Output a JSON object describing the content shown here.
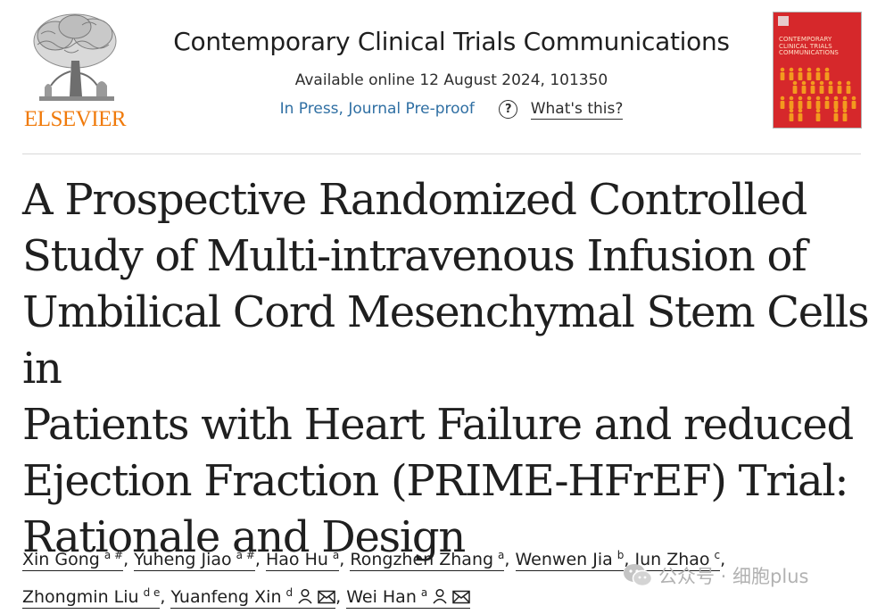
{
  "publisher": {
    "logo_text": "ELSEVIER",
    "logo_color": "#f07a0a"
  },
  "journal": {
    "name": "Contemporary Clinical Trials Communications",
    "availability": "Available online 12 August 2024, 101350",
    "status_link": "In Press, Journal Pre-proof",
    "help_link": "What's this?",
    "link_color": "#2f6fa3"
  },
  "cover": {
    "title_lines": [
      "CONTEMPORARY",
      "CLINICAL TRIALS",
      "COMMUNICATIONS"
    ],
    "color": "#d6282b"
  },
  "article": {
    "title_lines": [
      "A Prospective Randomized Controlled",
      "Study of Multi-intravenous Infusion of",
      "Umbilical Cord Mesenchymal Stem Cells in",
      "Patients with Heart Failure and reduced",
      "Ejection Fraction (PRIME-HFrEF) Trial:",
      "Rationale and Design"
    ]
  },
  "authors": [
    {
      "name": "Xin Gong",
      "affil": "a #"
    },
    {
      "name": "Yuheng Jiao",
      "affil": "a #"
    },
    {
      "name": "Hao Hu",
      "affil": "a"
    },
    {
      "name": "Rongzhen Zhang",
      "affil": "a"
    },
    {
      "name": "Wenwen Jia",
      "affil": "b"
    },
    {
      "name": "Jun Zhao",
      "affil": "c"
    },
    {
      "name": "Zhongmin Liu",
      "affil": "d e"
    },
    {
      "name": "Yuanfeng Xin",
      "affil": "d"
    },
    {
      "name": "Wei Han",
      "affil": "a"
    }
  ],
  "separator": ",",
  "watermark": {
    "text": "公众号 · 细胞plus",
    "icon": "wechat-icon"
  }
}
